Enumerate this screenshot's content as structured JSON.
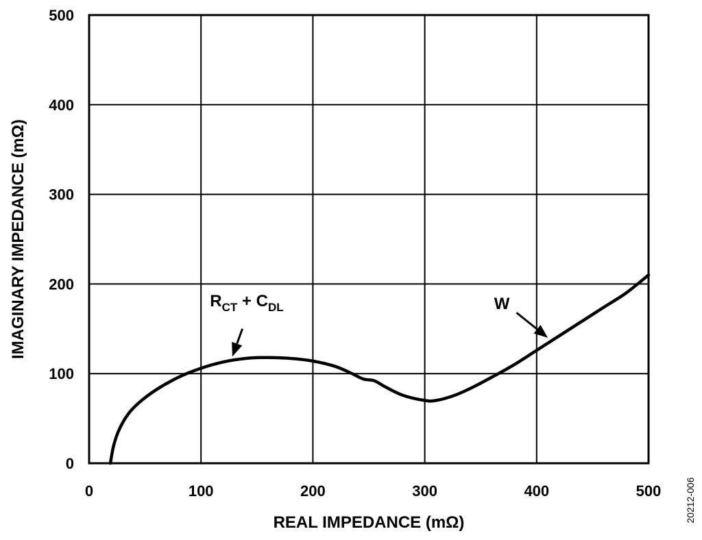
{
  "chart_data": {
    "type": "line",
    "xlabel": "REAL IMPEDANCE (mΩ)",
    "ylabel": "IMAGINARY IMPEDANCE (mΩ)",
    "xlim": [
      0,
      500
    ],
    "ylim": [
      0,
      500
    ],
    "x_ticks": [
      0,
      100,
      200,
      300,
      400,
      500
    ],
    "y_ticks": [
      0,
      100,
      200,
      300,
      400,
      500
    ],
    "grid": true,
    "line_color": "#000000",
    "series": [
      {
        "x": [
          19,
          22,
          27,
          35,
          45,
          60,
          80,
          100,
          120,
          140,
          160,
          180,
          200,
          220,
          235,
          245,
          255,
          265,
          280,
          300,
          310,
          325,
          340,
          360,
          380,
          400,
          420,
          440,
          460,
          480,
          500
        ],
        "y": [
          0,
          20,
          38,
          55,
          68,
          82,
          96,
          106,
          113,
          117,
          118,
          117,
          114,
          108,
          100,
          94,
          92,
          85,
          76,
          70,
          70,
          75,
          83,
          96,
          110,
          126,
          142,
          158,
          174,
          190,
          210
        ]
      }
    ],
    "annotations": [
      {
        "label_main": "R",
        "label_sub": "CT",
        "label_mid": " + C",
        "label_sub2": "DL",
        "text_at": [
          108,
          175
        ],
        "arrow_from": [
          137,
          150
        ],
        "arrow_to": [
          128,
          119
        ]
      },
      {
        "label_main": "W",
        "text_at": [
          362,
          172
        ],
        "arrow_from": [
          382,
          168
        ],
        "arrow_to": [
          410,
          140
        ]
      }
    ],
    "figure_id": "20212-006"
  }
}
